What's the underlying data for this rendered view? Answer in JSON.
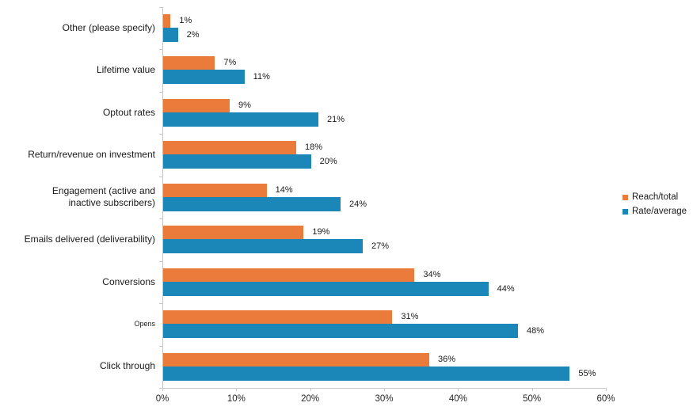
{
  "chart_data": {
    "type": "bar",
    "orientation": "horizontal",
    "title": "",
    "xlabel": "",
    "ylabel": "",
    "categories": [
      "Other (please specify)",
      "Lifetime value",
      "Optout rates",
      "Return/revenue on investment",
      "Engagement (active and\ninactive subscribers)",
      "Emails delivered (deliverability)",
      "Conversions",
      "Opens",
      "Click through"
    ],
    "series": [
      {
        "name": "Reach/total",
        "color": "#EB7B3B",
        "values": [
          1,
          7,
          9,
          18,
          14,
          19,
          34,
          31,
          36
        ]
      },
      {
        "name": "Rate/average",
        "color": "#1A87B8",
        "values": [
          2,
          11,
          21,
          20,
          24,
          27,
          44,
          48,
          55
        ]
      }
    ],
    "value_suffix": "%",
    "data_labels_visible": true,
    "x_ticks": [
      "0%",
      "10%",
      "20%",
      "30%",
      "40%",
      "50%",
      "60%"
    ],
    "xlim": [
      0,
      60
    ],
    "grid": false,
    "legend_position": "right",
    "small_label_category": "Opens",
    "axis_color": "#C6C6C6",
    "text_color": "#1A1A1A",
    "background_color": "#FFFFFF"
  }
}
